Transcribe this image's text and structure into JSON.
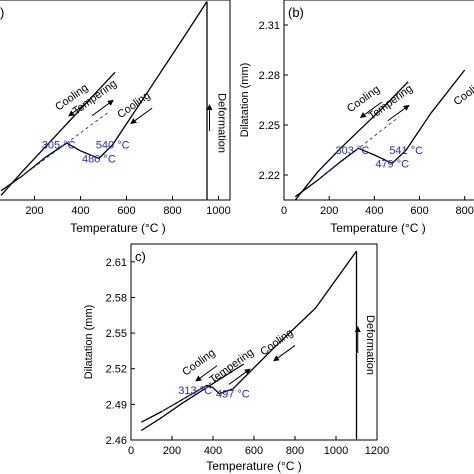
{
  "figure": {
    "panels": [
      {
        "label": ")",
        "xlabel": "Temperature (°C )",
        "ylabel": ""
      },
      {
        "label": "(b)",
        "xlabel": "Temperature (°C )",
        "ylabel": "Dilatation (mm)"
      },
      {
        "label": "c)",
        "xlabel": "Temperature (°C )",
        "ylabel": "Dilatation (mm)"
      }
    ]
  },
  "colors": {
    "curve": "#000000",
    "annotation": "#2a2ab8",
    "axis": "#000000",
    "background": "#ffffff"
  },
  "chart_data": [
    {
      "type": "line",
      "panel": "a",
      "title": "",
      "xlabel": "Temperature (°C )",
      "ylabel": "",
      "xlim": [
        50,
        1050
      ],
      "ylim": [
        2.19,
        2.32
      ],
      "xticks": [
        200,
        400,
        600,
        800,
        1000
      ],
      "yticks": [],
      "grid": false,
      "series": [
        {
          "role": "heating",
          "x": [
            50,
            150,
            250,
            340,
            400,
            480,
            540,
            700,
            850,
            950
          ],
          "y": [
            2.196,
            2.206,
            2.218,
            2.227,
            2.222,
            2.217,
            2.226,
            2.262,
            2.296,
            2.319
          ]
        },
        {
          "role": "deformation",
          "x": [
            950,
            950
          ],
          "y": [
            2.319,
            2.19
          ]
        },
        {
          "role": "cooling",
          "x": [
            50,
            150,
            250,
            350,
            450,
            550
          ],
          "y": [
            2.193,
            2.209,
            2.225,
            2.241,
            2.257,
            2.273
          ]
        }
      ],
      "annotations": [
        {
          "text": "305 °C",
          "x": 305,
          "y": 2.226
        },
        {
          "text": "480 °C",
          "x": 480,
          "y": 2.217
        },
        {
          "text": "540 °C",
          "x": 540,
          "y": 2.226
        },
        {
          "text": "Cooling",
          "x": 370,
          "y": 2.255,
          "arrow": true
        },
        {
          "text": "Tempering",
          "x": 470,
          "y": 2.255,
          "arrow": true
        },
        {
          "text": "Cooling",
          "x": 640,
          "y": 2.25,
          "arrow": true
        },
        {
          "text": "Deformation",
          "x": 1000,
          "y": 2.24,
          "arrow": true
        }
      ]
    },
    {
      "type": "line",
      "panel": "b",
      "title": "",
      "xlabel": "Temperature (°C )",
      "ylabel": "Dilatation (mm)",
      "xlim": [
        0,
        850
      ],
      "ylim": [
        2.205,
        2.325
      ],
      "xticks": [
        0,
        200,
        400,
        600,
        800
      ],
      "yticks": [
        2.22,
        2.25,
        2.28,
        2.31
      ],
      "grid": false,
      "series": [
        {
          "role": "heating",
          "x": [
            50,
            150,
            250,
            330,
            400,
            479,
            541,
            650,
            800
          ],
          "y": [
            2.207,
            2.217,
            2.228,
            2.236,
            2.232,
            2.227,
            2.235,
            2.257,
            2.283
          ]
        },
        {
          "role": "cooling",
          "x": [
            50,
            150,
            250,
            350,
            450,
            550
          ],
          "y": [
            2.205,
            2.222,
            2.236,
            2.249,
            2.262,
            2.276
          ]
        }
      ],
      "annotations": [
        {
          "text": "303 °C",
          "x": 303,
          "y": 2.235
        },
        {
          "text": "479 °C",
          "x": 479,
          "y": 2.227
        },
        {
          "text": "541 °C",
          "x": 541,
          "y": 2.235
        },
        {
          "text": "Cooling",
          "x": 360,
          "y": 2.264,
          "arrow": true
        },
        {
          "text": "Tempering",
          "x": 480,
          "y": 2.262,
          "arrow": true
        },
        {
          "text": "Cooli",
          "x": 810,
          "y": 2.266,
          "arrow": false
        }
      ]
    },
    {
      "type": "line",
      "panel": "c",
      "title": "",
      "xlabel": "Temperature (°C )",
      "ylabel": "Dilatation (mm)",
      "xlim": [
        0,
        1200
      ],
      "ylim": [
        2.46,
        2.625
      ],
      "xticks": [
        0,
        200,
        400,
        600,
        800,
        1000,
        1200
      ],
      "yticks": [
        2.46,
        2.49,
        2.52,
        2.55,
        2.58,
        2.61
      ],
      "grid": false,
      "series": [
        {
          "role": "heating",
          "x": [
            50,
            150,
            250,
            330,
            370,
            400,
            430,
            497,
            700,
            900,
            1100
          ],
          "y": [
            2.475,
            2.484,
            2.494,
            2.502,
            2.506,
            2.504,
            2.499,
            2.503,
            2.538,
            2.571,
            2.619
          ]
        },
        {
          "role": "deformation",
          "x": [
            1100,
            1100
          ],
          "y": [
            2.619,
            2.46
          ]
        },
        {
          "role": "cooling",
          "x": [
            50,
            150,
            250,
            350,
            450,
            550
          ],
          "y": [
            2.468,
            2.479,
            2.491,
            2.502,
            2.513,
            2.524
          ]
        }
      ],
      "annotations": [
        {
          "text": "313 °C",
          "x": 313,
          "y": 2.502
        },
        {
          "text": "497 °C",
          "x": 497,
          "y": 2.499
        },
        {
          "text": "Cooling",
          "x": 340,
          "y": 2.523,
          "arrow": true
        },
        {
          "text": "Tempering",
          "x": 500,
          "y": 2.52,
          "arrow": true
        },
        {
          "text": "Cooling",
          "x": 720,
          "y": 2.54,
          "arrow": true
        },
        {
          "text": "Deformation",
          "x": 1150,
          "y": 2.54,
          "arrow": true
        }
      ]
    }
  ]
}
